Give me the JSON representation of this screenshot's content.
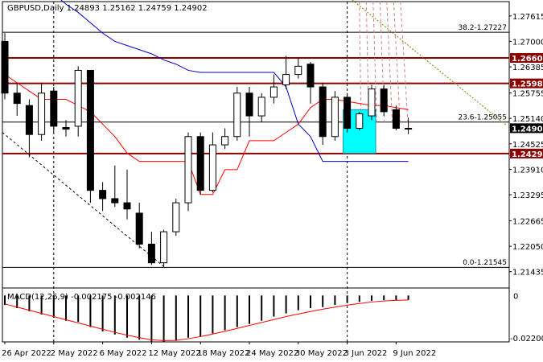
{
  "chart_data": {
    "type": "candlestick",
    "symbol_header": "GBPUSD,Daily 1.24893 1.25162 1.24759 1.24902",
    "y_ticks": [
      1.27615,
      1.27,
      1.26385,
      1.25755,
      1.2514,
      1.24525,
      1.2391,
      1.23295,
      1.22665,
      1.2205,
      1.21435
    ],
    "ylim": [
      1.2108,
      1.28
    ],
    "x_tick_labels": [
      {
        "label": "26 Apr 2022",
        "index": 0
      },
      {
        "label": "2 May 2022",
        "index": 4
      },
      {
        "label": "6 May 2022",
        "index": 8
      },
      {
        "label": "12 May 2022",
        "index": 12
      },
      {
        "label": "18 May 2022",
        "index": 16
      },
      {
        "label": "24 May 2022",
        "index": 20
      },
      {
        "label": "30 May 2022",
        "index": 24
      },
      {
        "label": "3 Jun 2022",
        "index": 28
      },
      {
        "label": "9 Jun 2022",
        "index": 32
      }
    ],
    "candles": [
      {
        "o": 1.27,
        "h": 1.272,
        "l": 1.256,
        "c": 1.2575
      },
      {
        "o": 1.2575,
        "h": 1.26,
        "l": 1.252,
        "c": 1.255
      },
      {
        "o": 1.2545,
        "h": 1.256,
        "l": 1.242,
        "c": 1.2475
      },
      {
        "o": 1.2475,
        "h": 1.26,
        "l": 1.246,
        "c": 1.2575
      },
      {
        "o": 1.258,
        "h": 1.259,
        "l": 1.248,
        "c": 1.2495
      },
      {
        "o": 1.2492,
        "h": 1.251,
        "l": 1.247,
        "c": 1.2488
      },
      {
        "o": 1.2495,
        "h": 1.264,
        "l": 1.247,
        "c": 1.263
      },
      {
        "o": 1.263,
        "h": 1.263,
        "l": 1.231,
        "c": 1.234
      },
      {
        "o": 1.234,
        "h": 1.236,
        "l": 1.229,
        "c": 1.232
      },
      {
        "o": 1.232,
        "h": 1.24,
        "l": 1.23,
        "c": 1.231
      },
      {
        "o": 1.231,
        "h": 1.239,
        "l": 1.227,
        "c": 1.2295
      },
      {
        "o": 1.2285,
        "h": 1.231,
        "l": 1.22,
        "c": 1.221
      },
      {
        "o": 1.221,
        "h": 1.224,
        "l": 1.216,
        "c": 1.2165
      },
      {
        "o": 1.2165,
        "h": 1.2245,
        "l": 1.2155,
        "c": 1.224
      },
      {
        "o": 1.224,
        "h": 1.232,
        "l": 1.223,
        "c": 1.231
      },
      {
        "o": 1.231,
        "h": 1.248,
        "l": 1.229,
        "c": 1.247
      },
      {
        "o": 1.247,
        "h": 1.248,
        "l": 1.233,
        "c": 1.234
      },
      {
        "o": 1.234,
        "h": 1.248,
        "l": 1.2335,
        "c": 1.245
      },
      {
        "o": 1.245,
        "h": 1.249,
        "l": 1.244,
        "c": 1.247
      },
      {
        "o": 1.247,
        "h": 1.259,
        "l": 1.246,
        "c": 1.2575
      },
      {
        "o": 1.2575,
        "h": 1.259,
        "l": 1.247,
        "c": 1.252
      },
      {
        "o": 1.252,
        "h": 1.2575,
        "l": 1.2505,
        "c": 1.2565
      },
      {
        "o": 1.2565,
        "h": 1.262,
        "l": 1.255,
        "c": 1.259
      },
      {
        "o": 1.2595,
        "h": 1.2665,
        "l": 1.2585,
        "c": 1.262
      },
      {
        "o": 1.262,
        "h": 1.266,
        "l": 1.261,
        "c": 1.264
      },
      {
        "o": 1.2645,
        "h": 1.265,
        "l": 1.255,
        "c": 1.259
      },
      {
        "o": 1.259,
        "h": 1.26,
        "l": 1.245,
        "c": 1.247
      },
      {
        "o": 1.247,
        "h": 1.258,
        "l": 1.246,
        "c": 1.2565
      },
      {
        "o": 1.2565,
        "h": 1.2575,
        "l": 1.248,
        "c": 1.249
      },
      {
        "o": 1.249,
        "h": 1.253,
        "l": 1.2485,
        "c": 1.2525
      },
      {
        "o": 1.252,
        "h": 1.2595,
        "l": 1.251,
        "c": 1.2585
      },
      {
        "o": 1.2585,
        "h": 1.2595,
        "l": 1.252,
        "c": 1.253
      },
      {
        "o": 1.2535,
        "h": 1.2545,
        "l": 1.2485,
        "c": 1.249
      },
      {
        "o": 1.2489,
        "h": 1.2516,
        "l": 1.2476,
        "c": 1.249
      }
    ],
    "price_labels": [
      {
        "value": 1.266,
        "text": "1.26600",
        "color": "#8b0000"
      },
      {
        "value": 1.25985,
        "text": "1.25985",
        "color": "#8b0000"
      },
      {
        "value": 1.24902,
        "text": "1.24902",
        "color": "#000000"
      },
      {
        "value": 1.2429,
        "text": "1.24290",
        "color": "#8b0000"
      }
    ],
    "levels": {
      "dark_red": [
        1.266,
        1.25985,
        1.2429
      ],
      "black": [
        1.2722,
        1.2505,
        1.2154
      ]
    },
    "fib_labels": [
      {
        "text": "38.2-1.27227",
        "value": 1.27227
      },
      {
        "text": "23.6-1.25055",
        "value": 1.25055
      },
      {
        "text": "0.0-1.21545",
        "value": 1.21545
      }
    ],
    "macd": {
      "label": "MACD(12,26,9) -0.002175 -0.002146",
      "y_ticks": [
        "0",
        "-0.022002"
      ],
      "ylim": [
        -0.022002,
        0.0005
      ],
      "hist": [
        -0.0045,
        -0.006,
        -0.0075,
        -0.009,
        -0.0105,
        -0.012,
        -0.0125,
        -0.015,
        -0.017,
        -0.0185,
        -0.02,
        -0.021,
        -0.022,
        -0.022,
        -0.0215,
        -0.02,
        -0.0195,
        -0.018,
        -0.0165,
        -0.015,
        -0.0135,
        -0.012,
        -0.01,
        -0.0085,
        -0.007,
        -0.006,
        -0.0055,
        -0.0045,
        -0.0035,
        -0.003,
        -0.0025,
        -0.0022,
        -0.0022,
        -0.0021
      ],
      "signal": [
        -0.004,
        -0.0055,
        -0.007,
        -0.0085,
        -0.01,
        -0.0115,
        -0.013,
        -0.0145,
        -0.016,
        -0.0175,
        -0.0188,
        -0.02,
        -0.021,
        -0.0214,
        -0.0213,
        -0.0205,
        -0.0195,
        -0.0183,
        -0.017,
        -0.0156,
        -0.0142,
        -0.0128,
        -0.0114,
        -0.01,
        -0.0088,
        -0.0076,
        -0.0065,
        -0.0055,
        -0.0046,
        -0.0038,
        -0.0031,
        -0.0026,
        -0.0023,
        -0.0021
      ]
    },
    "red_line": [
      1.262,
      1.26,
      1.258,
      1.256,
      1.256,
      1.256,
      1.2545,
      1.253,
      1.25,
      1.247,
      1.243,
      1.241,
      1.241,
      1.241,
      1.241,
      1.241,
      1.233,
      1.233,
      1.239,
      1.239,
      1.246,
      1.246,
      1.246,
      1.248,
      1.25,
      1.254,
      1.256,
      1.256,
      1.2555,
      1.255,
      1.2545,
      1.2545,
      1.254,
      1.2535
    ],
    "blue_line": [
      1.29,
      1.288,
      1.286,
      1.284,
      1.2815,
      1.279,
      1.277,
      1.2745,
      1.272,
      1.27,
      1.269,
      1.268,
      1.267,
      1.2655,
      1.2645,
      1.263,
      1.2625,
      1.2625,
      1.2625,
      1.2625,
      1.2625,
      1.2625,
      1.2625,
      1.259,
      1.25,
      1.247,
      1.241,
      1.241,
      1.241,
      1.241,
      1.241,
      1.241,
      1.241,
      1.241
    ],
    "cyan_box": {
      "from_index": 28,
      "to_index": 30,
      "low": 1.243,
      "high": 1.2535,
      "color": "#00ffff"
    },
    "colors": {
      "bull": "#ffffff",
      "bear": "#000000",
      "red_line": "#ff0000",
      "blue_line": "#0000cc",
      "dark_red_level": "#8b0000",
      "olive": "#808000",
      "fan": "#cc8888"
    }
  }
}
